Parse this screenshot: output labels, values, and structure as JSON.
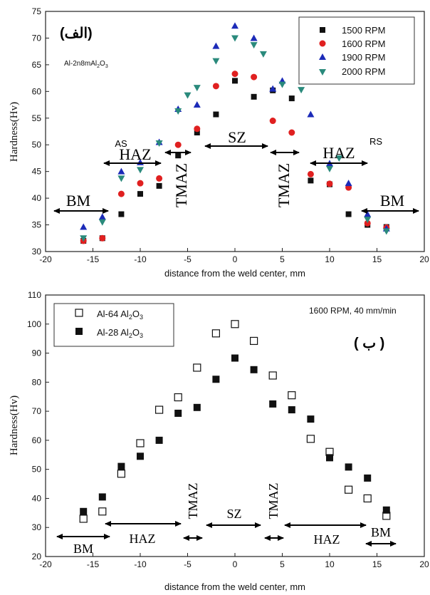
{
  "chart_data": [
    {
      "type": "scatter",
      "panel_label": "(الف)",
      "inset_text": "Al-2n8mAl2O3",
      "xlabel": "distance from the weld center, mm",
      "ylabel": "Hardness(Hv)",
      "xlim": [
        -20,
        20
      ],
      "ylim": [
        30,
        75
      ],
      "xticks": [
        -20,
        -15,
        -10,
        -5,
        0,
        5,
        10,
        15,
        20
      ],
      "yticks": [
        30,
        35,
        40,
        45,
        50,
        55,
        60,
        65,
        70,
        75
      ],
      "legend_position": "top-right",
      "series": [
        {
          "name": "1500 RPM",
          "marker": "square",
          "color": "#111111",
          "x": [
            -16,
            -14,
            -12,
            -10,
            -8,
            -6,
            -4,
            -2,
            0,
            2,
            4,
            6,
            8,
            10,
            12,
            14,
            16
          ],
          "y": [
            32,
            32.5,
            37,
            40.8,
            42.3,
            48,
            52.3,
            55.7,
            62,
            59,
            60.2,
            58.7,
            43.3,
            42.6,
            37,
            35,
            34.6
          ]
        },
        {
          "name": "1600 RPM",
          "marker": "circle",
          "color": "#e02020",
          "x": [
            -16,
            -14,
            -12,
            -10,
            -8,
            -6,
            -4,
            -2,
            0,
            2,
            4,
            6,
            8,
            10,
            12,
            14,
            16
          ],
          "y": [
            32,
            32.5,
            40.8,
            42.8,
            43.7,
            50,
            53,
            61,
            63.3,
            62.7,
            54.5,
            52.3,
            44.5,
            42.7,
            42,
            35.3,
            34.5
          ]
        },
        {
          "name": "1900 RPM",
          "marker": "triangle-up",
          "color": "#1c2bb8",
          "x": [
            -16,
            -14,
            -12,
            -10,
            -8,
            -6,
            -4,
            -2,
            0,
            2,
            4,
            5,
            8,
            10,
            12,
            14,
            16
          ],
          "y": [
            34.6,
            36.5,
            45,
            46.7,
            50.5,
            56.7,
            57.5,
            68.5,
            72.3,
            70,
            60.5,
            62,
            55.7,
            46.5,
            42.8,
            37,
            34.3
          ]
        },
        {
          "name": "2000 RPM",
          "marker": "triangle-down",
          "color": "#2a8a7c",
          "x": [
            -16,
            -14,
            -12,
            -10,
            -8,
            -6,
            -5,
            -4,
            -2,
            0,
            2,
            3,
            5,
            7,
            10,
            11,
            14,
            16
          ],
          "y": [
            32.5,
            35.5,
            43.7,
            45.3,
            50.3,
            56.3,
            59.3,
            60.7,
            65.7,
            70,
            68.7,
            67,
            61.3,
            60.3,
            45.5,
            47.5,
            36,
            33.8
          ]
        }
      ],
      "annotations": {
        "bm_left": "BM",
        "haz_left": "HAZ",
        "as": "AS",
        "tmaz_left": "TMAZ",
        "sz": "SZ",
        "tmaz_right": "TMAZ",
        "haz_right": "HAZ",
        "rs": "RS",
        "bm_right": "BM"
      }
    },
    {
      "type": "scatter",
      "panel_label": "( ب )",
      "inset_text": "1600 RPM, 40 mm/min",
      "xlabel": "distance from the weld center, mm",
      "ylabel": "Hardness(Hv)",
      "xlim": [
        -20,
        20
      ],
      "ylim": [
        20,
        110
      ],
      "xticks": [
        -20,
        -15,
        -10,
        -5,
        0,
        5,
        10,
        15,
        20
      ],
      "yticks": [
        20,
        30,
        40,
        50,
        60,
        70,
        80,
        90,
        100,
        110
      ],
      "legend_position": "top-left",
      "series": [
        {
          "name": "Al-64 Al2O3",
          "name_main": "Al-64 Al",
          "name_sub": "2",
          "name_tail": "O",
          "name_sub2": "3",
          "marker": "open-square",
          "color": "#111111",
          "x": [
            -16,
            -14,
            -12,
            -10,
            -8,
            -6,
            -4,
            -2,
            0,
            2,
            4,
            6,
            8,
            10,
            12,
            14,
            16
          ],
          "y": [
            33,
            35.5,
            48.5,
            59,
            70.5,
            74.8,
            85,
            96.8,
            100,
            94.2,
            82.3,
            75.5,
            60.5,
            56,
            43,
            40,
            34
          ]
        },
        {
          "name": "Al-28 Al2O3",
          "name_main": "Al-28 Al",
          "name_sub": "2",
          "name_tail": "O",
          "name_sub2": "3",
          "marker": "square",
          "color": "#111111",
          "x": [
            -16,
            -14,
            -12,
            -10,
            -8,
            -6,
            -4,
            -2,
            0,
            2,
            4,
            6,
            8,
            10,
            12,
            14,
            16
          ],
          "y": [
            35.5,
            40.5,
            51,
            54.5,
            60,
            69.3,
            71.3,
            81,
            88.3,
            84.3,
            72.5,
            70.5,
            67.3,
            54,
            50.8,
            47,
            36
          ]
        }
      ],
      "annotations": {
        "bm_left": "BM",
        "haz_left": "HAZ",
        "tmaz_left": "TMAZ",
        "sz": "SZ",
        "tmaz_right": "TMAZ",
        "haz_right": "HAZ",
        "bm_right": "BM"
      }
    }
  ],
  "colors": {
    "axis": "#222222",
    "background": "#ffffff"
  }
}
